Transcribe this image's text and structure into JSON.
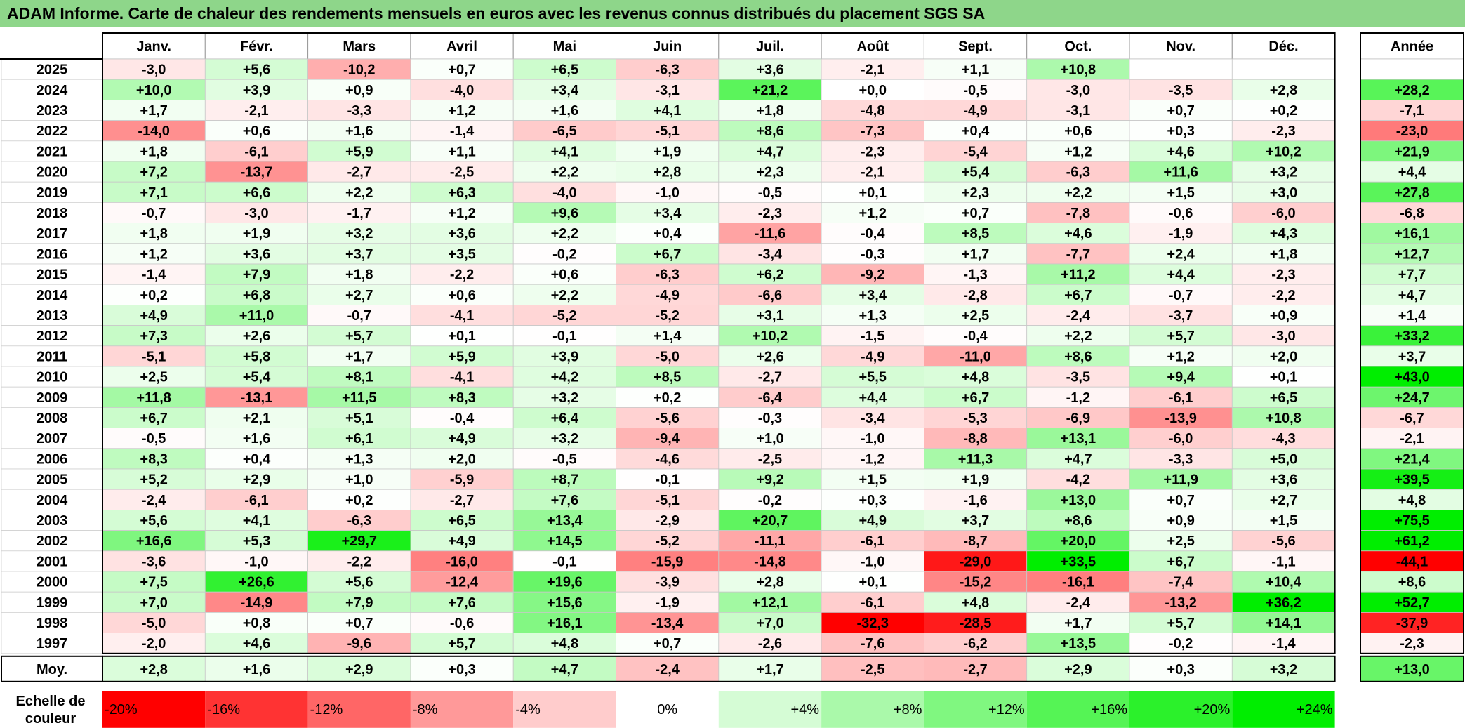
{
  "title": "ADAM Informe. Carte de chaleur des rendements mensuels en euros avec les revenus connus distribués du placement SGS SA",
  "chart_data": {
    "type": "heatmap",
    "columns": [
      "Janv.",
      "Févr.",
      "Mars",
      "Avril",
      "Mai",
      "Juin",
      "Juil.",
      "Août",
      "Sept.",
      "Oct.",
      "Nov.",
      "Déc."
    ],
    "year_header": "Année",
    "avg_label": "Moy.",
    "rows": [
      {
        "year": "2025",
        "values": [
          "-3,0",
          "+5,6",
          "-10,2",
          "+0,7",
          "+6,5",
          "-6,3",
          "+3,6",
          "-2,1",
          "+1,1",
          "+10,8",
          "",
          ""
        ],
        "annual": ""
      },
      {
        "year": "2024",
        "values": [
          "+10,0",
          "+3,9",
          "+0,9",
          "-4,0",
          "+3,4",
          "-3,1",
          "+21,2",
          "+0,0",
          "-0,5",
          "-3,0",
          "-3,5",
          "+2,8"
        ],
        "annual": "+28,2"
      },
      {
        "year": "2023",
        "values": [
          "+1,7",
          "-2,1",
          "-3,3",
          "+1,2",
          "+1,6",
          "+4,1",
          "+1,8",
          "-4,8",
          "-4,9",
          "-3,1",
          "+0,7",
          "+0,2"
        ],
        "annual": "-7,1"
      },
      {
        "year": "2022",
        "values": [
          "-14,0",
          "+0,6",
          "+1,6",
          "-1,4",
          "-6,5",
          "-5,1",
          "+8,6",
          "-7,3",
          "+0,4",
          "+0,6",
          "+0,3",
          "-2,3"
        ],
        "annual": "-23,0"
      },
      {
        "year": "2021",
        "values": [
          "+1,8",
          "-6,1",
          "+5,9",
          "+1,1",
          "+4,1",
          "+1,9",
          "+4,7",
          "-2,3",
          "-5,4",
          "+1,2",
          "+4,6",
          "+10,2"
        ],
        "annual": "+21,9"
      },
      {
        "year": "2020",
        "values": [
          "+7,2",
          "-13,7",
          "-2,7",
          "-2,5",
          "+2,2",
          "+2,8",
          "+2,3",
          "-2,1",
          "+5,4",
          "-6,3",
          "+11,6",
          "+3,2"
        ],
        "annual": "+4,4"
      },
      {
        "year": "2019",
        "values": [
          "+7,1",
          "+6,6",
          "+2,2",
          "+6,3",
          "-4,0",
          "-1,0",
          "-0,5",
          "+0,1",
          "+2,3",
          "+2,2",
          "+1,5",
          "+3,0"
        ],
        "annual": "+27,8"
      },
      {
        "year": "2018",
        "values": [
          "-0,7",
          "-3,0",
          "-1,7",
          "+1,2",
          "+9,6",
          "+3,4",
          "-2,3",
          "+1,2",
          "+0,7",
          "-7,8",
          "-0,6",
          "-6,0"
        ],
        "annual": "-6,8"
      },
      {
        "year": "2017",
        "values": [
          "+1,8",
          "+1,9",
          "+3,2",
          "+3,6",
          "+2,2",
          "+0,4",
          "-11,6",
          "-0,4",
          "+8,5",
          "+4,6",
          "-1,9",
          "+4,3"
        ],
        "annual": "+16,1"
      },
      {
        "year": "2016",
        "values": [
          "+1,2",
          "+3,6",
          "+3,7",
          "+3,5",
          "-0,2",
          "+6,7",
          "-3,4",
          "-0,3",
          "+1,7",
          "-7,7",
          "+2,4",
          "+1,8"
        ],
        "annual": "+12,7"
      },
      {
        "year": "2015",
        "values": [
          "-1,4",
          "+7,9",
          "+1,8",
          "-2,2",
          "+0,6",
          "-6,3",
          "+6,2",
          "-9,2",
          "-1,3",
          "+11,2",
          "+4,4",
          "-2,3"
        ],
        "annual": "+7,7"
      },
      {
        "year": "2014",
        "values": [
          "+0,2",
          "+6,8",
          "+2,7",
          "+0,6",
          "+2,2",
          "-4,9",
          "-6,6",
          "+3,4",
          "-2,8",
          "+6,7",
          "-0,7",
          "-2,2"
        ],
        "annual": "+4,7"
      },
      {
        "year": "2013",
        "values": [
          "+4,9",
          "+11,0",
          "-0,7",
          "-4,1",
          "-5,2",
          "-5,2",
          "+3,1",
          "+1,3",
          "+2,5",
          "-2,4",
          "-3,7",
          "+0,9"
        ],
        "annual": "+1,4"
      },
      {
        "year": "2012",
        "values": [
          "+7,3",
          "+2,6",
          "+5,7",
          "+0,1",
          "-0,1",
          "+1,4",
          "+10,2",
          "-1,5",
          "-0,4",
          "+2,2",
          "+5,7",
          "-3,0"
        ],
        "annual": "+33,2"
      },
      {
        "year": "2011",
        "values": [
          "-5,1",
          "+5,8",
          "+1,7",
          "+5,9",
          "+3,9",
          "-5,0",
          "+2,6",
          "-4,9",
          "-11,0",
          "+8,6",
          "+1,2",
          "+2,0"
        ],
        "annual": "+3,7"
      },
      {
        "year": "2010",
        "values": [
          "+2,5",
          "+5,4",
          "+8,1",
          "-4,1",
          "+4,2",
          "+8,5",
          "-2,7",
          "+5,5",
          "+4,8",
          "-3,5",
          "+9,4",
          "+0,1"
        ],
        "annual": "+43,0"
      },
      {
        "year": "2009",
        "values": [
          "+11,8",
          "-13,1",
          "+11,5",
          "+8,3",
          "+3,2",
          "+0,2",
          "-6,4",
          "+4,4",
          "+6,7",
          "-1,2",
          "-6,1",
          "+6,5"
        ],
        "annual": "+24,7"
      },
      {
        "year": "2008",
        "values": [
          "+6,7",
          "+2,1",
          "+5,1",
          "-0,4",
          "+6,4",
          "-5,6",
          "-0,3",
          "-3,4",
          "-5,3",
          "-6,9",
          "-13,9",
          "+10,8"
        ],
        "annual": "-6,7"
      },
      {
        "year": "2007",
        "values": [
          "-0,5",
          "+1,6",
          "+6,1",
          "+4,9",
          "+3,2",
          "-9,4",
          "+1,0",
          "-1,0",
          "-8,8",
          "+13,1",
          "-6,0",
          "-4,3"
        ],
        "annual": "-2,1"
      },
      {
        "year": "2006",
        "values": [
          "+8,3",
          "+0,4",
          "+1,3",
          "+2,0",
          "-0,5",
          "-4,6",
          "-2,5",
          "-1,2",
          "+11,3",
          "+4,7",
          "-3,3",
          "+5,0"
        ],
        "annual": "+21,4"
      },
      {
        "year": "2005",
        "values": [
          "+5,2",
          "+2,9",
          "+1,0",
          "-5,9",
          "+8,7",
          "-0,1",
          "+9,2",
          "+1,5",
          "+1,9",
          "-4,2",
          "+11,9",
          "+3,6"
        ],
        "annual": "+39,5"
      },
      {
        "year": "2004",
        "values": [
          "-2,4",
          "-6,1",
          "+0,2",
          "-2,7",
          "+7,6",
          "-5,1",
          "-0,2",
          "+0,3",
          "-1,6",
          "+13,0",
          "+0,7",
          "+2,7"
        ],
        "annual": "+4,8"
      },
      {
        "year": "2003",
        "values": [
          "+5,6",
          "+4,1",
          "-6,3",
          "+6,5",
          "+13,4",
          "-2,9",
          "+20,7",
          "+4,9",
          "+3,7",
          "+8,6",
          "+0,9",
          "+1,5"
        ],
        "annual": "+75,5"
      },
      {
        "year": "2002",
        "values": [
          "+16,6",
          "+5,3",
          "+29,7",
          "+4,9",
          "+14,5",
          "-5,2",
          "-11,1",
          "-6,1",
          "-8,7",
          "+20,0",
          "+2,5",
          "-5,6"
        ],
        "annual": "+61,2"
      },
      {
        "year": "2001",
        "values": [
          "-3,6",
          "-1,0",
          "-2,2",
          "-16,0",
          "-0,1",
          "-15,9",
          "-14,8",
          "-1,0",
          "-29,0",
          "+33,5",
          "+6,7",
          "-1,1"
        ],
        "annual": "-44,1"
      },
      {
        "year": "2000",
        "values": [
          "+7,5",
          "+26,6",
          "+5,6",
          "-12,4",
          "+19,6",
          "-3,9",
          "+2,8",
          "+0,1",
          "-15,2",
          "-16,1",
          "-7,4",
          "+10,4"
        ],
        "annual": "+8,6"
      },
      {
        "year": "1999",
        "values": [
          "+7,0",
          "-14,9",
          "+7,9",
          "+7,6",
          "+15,6",
          "-1,9",
          "+12,1",
          "-6,1",
          "+4,8",
          "-2,4",
          "-13,2",
          "+36,2"
        ],
        "annual": "+52,7"
      },
      {
        "year": "1998",
        "values": [
          "-5,0",
          "+0,8",
          "+0,7",
          "-0,6",
          "+16,1",
          "-13,4",
          "+7,0",
          "-32,3",
          "-28,5",
          "+1,7",
          "+5,7",
          "+14,1"
        ],
        "annual": "-37,9"
      },
      {
        "year": "1997",
        "values": [
          "-2,0",
          "+4,6",
          "-9,6",
          "+5,7",
          "+4,8",
          "+0,7",
          "-2,6",
          "-7,6",
          "-6,2",
          "+13,5",
          "-0,2",
          "-1,4"
        ],
        "annual": "-2,3"
      }
    ],
    "averages": {
      "values": [
        "+2,8",
        "+1,6",
        "+2,9",
        "+0,3",
        "+4,7",
        "-2,4",
        "+1,7",
        "-2,5",
        "-2,7",
        "+2,9",
        "+0,3",
        "+3,2"
      ],
      "annual": "+13,0"
    },
    "scale": {
      "label_line1": "Echelle de",
      "label_line2": "couleur",
      "steps": [
        {
          "label": "-20%",
          "value": -20
        },
        {
          "label": "-16%",
          "value": -16
        },
        {
          "label": "-12%",
          "value": -12
        },
        {
          "label": "-8%",
          "value": -8
        },
        {
          "label": "-4%",
          "value": -4
        },
        {
          "label": "0%",
          "value": 0
        },
        {
          "label": "+4%",
          "value": 4
        },
        {
          "label": "+8%",
          "value": 8
        },
        {
          "label": "+12%",
          "value": 12
        },
        {
          "label": "+16%",
          "value": 16
        },
        {
          "label": "+20%",
          "value": 20
        },
        {
          "label": "+24%",
          "value": 24
        }
      ]
    },
    "colors": {
      "negative_max": "#ff0000",
      "neutral": "#ffffff",
      "positive_max": "#00ee00",
      "title_bar": "#8ed68a"
    }
  }
}
